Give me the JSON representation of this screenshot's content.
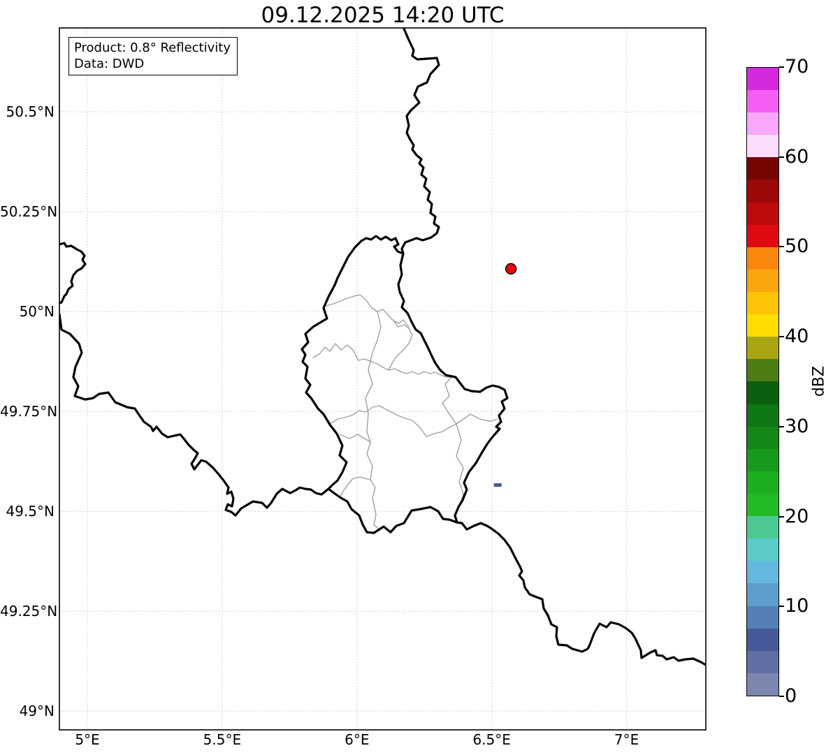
{
  "title": "09.12.2025 14:20 UTC",
  "info_box": {
    "line1": "Product: 0.8° Reflectivity",
    "line2": "Data: DWD"
  },
  "axes": {
    "y_ticks": [
      {
        "label": "50.5°N",
        "lat": 50.5
      },
      {
        "label": "50.25°N",
        "lat": 50.25
      },
      {
        "label": "50°N",
        "lat": 50.0
      },
      {
        "label": "49.75°N",
        "lat": 49.75
      },
      {
        "label": "49.5°N",
        "lat": 49.5
      },
      {
        "label": "49.25°N",
        "lat": 49.25
      },
      {
        "label": "49°N",
        "lat": 49.0
      }
    ],
    "x_ticks": [
      {
        "label": "5°E",
        "lon": 5.0
      },
      {
        "label": "5.5°E",
        "lon": 5.5
      },
      {
        "label": "6°E",
        "lon": 6.0
      },
      {
        "label": "6.5°E",
        "lon": 6.5
      },
      {
        "label": "7°E",
        "lon": 7.0
      }
    ]
  },
  "colorbar": {
    "label": "dBZ",
    "ticks": [
      {
        "label": "0",
        "value": 0
      },
      {
        "label": "10",
        "value": 10
      },
      {
        "label": "20",
        "value": 20
      },
      {
        "label": "30",
        "value": 30
      },
      {
        "label": "40",
        "value": 40
      },
      {
        "label": "50",
        "value": 50
      },
      {
        "label": "60",
        "value": 60
      },
      {
        "label": "70",
        "value": 70
      }
    ],
    "segments": [
      {
        "from": 0,
        "to": 2.5,
        "color": "#7C86AE"
      },
      {
        "from": 2.5,
        "to": 5,
        "color": "#616FA4"
      },
      {
        "from": 5,
        "to": 7.5,
        "color": "#47599B"
      },
      {
        "from": 7.5,
        "to": 10,
        "color": "#5480B5"
      },
      {
        "from": 10,
        "to": 12.5,
        "color": "#5C9DCB"
      },
      {
        "from": 12.5,
        "to": 15,
        "color": "#65B8DD"
      },
      {
        "from": 15,
        "to": 17.5,
        "color": "#5CCBC7"
      },
      {
        "from": 17.5,
        "to": 20,
        "color": "#4CC993"
      },
      {
        "from": 20,
        "to": 22.5,
        "color": "#23BB25"
      },
      {
        "from": 22.5,
        "to": 25,
        "color": "#1DAE20"
      },
      {
        "from": 25,
        "to": 27.5,
        "color": "#17991B"
      },
      {
        "from": 27.5,
        "to": 30,
        "color": "#138817"
      },
      {
        "from": 30,
        "to": 32.5,
        "color": "#0F7713"
      },
      {
        "from": 32.5,
        "to": 35,
        "color": "#0B600F"
      },
      {
        "from": 35,
        "to": 37.5,
        "color": "#4E7D13"
      },
      {
        "from": 37.5,
        "to": 40,
        "color": "#A8A412"
      },
      {
        "from": 40,
        "to": 42.5,
        "color": "#FDDD02"
      },
      {
        "from": 42.5,
        "to": 45,
        "color": "#FCC404"
      },
      {
        "from": 45,
        "to": 47.5,
        "color": "#FAA60C"
      },
      {
        "from": 47.5,
        "to": 50,
        "color": "#F9870D"
      },
      {
        "from": 50,
        "to": 52.5,
        "color": "#DE0A10"
      },
      {
        "from": 52.5,
        "to": 55,
        "color": "#BD0A0D"
      },
      {
        "from": 55,
        "to": 57.5,
        "color": "#9C0908"
      },
      {
        "from": 57.5,
        "to": 60,
        "color": "#770502"
      },
      {
        "from": 60,
        "to": 62.5,
        "color": "#FBDCFB"
      },
      {
        "from": 62.5,
        "to": 65,
        "color": "#F9A8F9"
      },
      {
        "from": 65,
        "to": 67.5,
        "color": "#F45EF3"
      },
      {
        "from": 67.5,
        "to": 70,
        "color": "#D429DF"
      }
    ]
  },
  "markers": [
    {
      "kind": "station-dot",
      "lon": 6.571,
      "lat": 50.107,
      "fill": "#E8000B",
      "stroke": "#000000",
      "radius": 7.5
    },
    {
      "kind": "echo-pixel",
      "lon": 6.522,
      "lat": 49.566,
      "fill": "#47598F",
      "width": 11,
      "height": 5
    }
  ],
  "colors": {
    "national_border": "#000000",
    "admin_border": "#A0A0A0",
    "gridline": "#C6C6C6",
    "frame": "#000000"
  },
  "chart_data": {
    "type": "map",
    "title": "09.12.2025 14:20 UTC",
    "product": "0.8° Reflectivity",
    "data_source": "DWD",
    "extent": {
      "lon_min_e": 4.9,
      "lon_max_e": 7.3,
      "lat_min_n": 48.95,
      "lat_max_n": 50.71
    },
    "graticule": {
      "lon_ticks_deg_e": [
        5,
        5.5,
        6,
        6.5,
        7
      ],
      "lat_ticks_deg_n": [
        49,
        49.25,
        49.5,
        49.75,
        50,
        50.25,
        50.5
      ]
    },
    "region": "Luxembourg and surrounding national borders (BE/DE/FR) with Luxembourg canton boundaries",
    "radar_echoes": [
      {
        "lon_e": 6.57,
        "lat_n": 50.11,
        "kind": "red dot marker"
      },
      {
        "lon_e": 6.52,
        "lat_n": 49.57,
        "kind": "single low-reflectivity pixel",
        "approx_dbz": 3
      }
    ],
    "colorbar": {
      "label": "dBZ",
      "min": 0,
      "max": 70,
      "tick_step": 10,
      "segment_step": 2.5,
      "legend_position": "right"
    }
  }
}
